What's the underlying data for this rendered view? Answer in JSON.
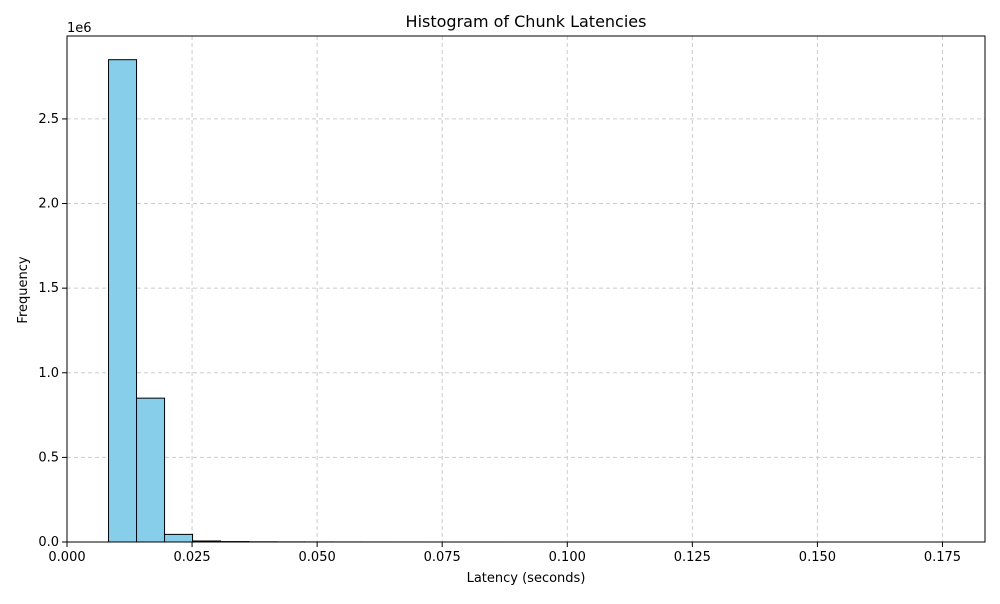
{
  "chart_data": {
    "type": "bar",
    "title": "Histogram of Chunk Latencies",
    "xlabel": "Latency (seconds)",
    "ylabel": "Frequency",
    "xlim": [
      0.0,
      0.1835
    ],
    "ylim": [
      0,
      2990000
    ],
    "y_offset_label": "1e6",
    "x_ticks": [
      0.0,
      0.025,
      0.05,
      0.075,
      0.1,
      0.125,
      0.15,
      0.175
    ],
    "x_tick_labels": [
      "0.000",
      "0.025",
      "0.050",
      "0.075",
      "0.100",
      "0.125",
      "0.150",
      "0.175"
    ],
    "y_ticks": [
      0,
      500000,
      1000000,
      1500000,
      2000000,
      2500000
    ],
    "y_tick_labels": [
      "0.0",
      "0.5",
      "1.0",
      "1.5",
      "2.0",
      "2.5"
    ],
    "grid": true,
    "bar_color": "#87ceeb",
    "edge_color": "#000000",
    "bins": [
      {
        "x0": 0.0083,
        "x1": 0.0139,
        "value": 2850000
      },
      {
        "x0": 0.0139,
        "x1": 0.0195,
        "value": 850000
      },
      {
        "x0": 0.0195,
        "x1": 0.0251,
        "value": 45000
      },
      {
        "x0": 0.0251,
        "x1": 0.0307,
        "value": 6000
      },
      {
        "x0": 0.0307,
        "x1": 0.0363,
        "value": 2500
      },
      {
        "x0": 0.0363,
        "x1": 0.0419,
        "value": 1200
      },
      {
        "x0": 0.0419,
        "x1": 0.0475,
        "value": 700
      },
      {
        "x0": 0.0475,
        "x1": 0.0531,
        "value": 450
      },
      {
        "x0": 0.0531,
        "x1": 0.0587,
        "value": 300
      },
      {
        "x0": 0.0587,
        "x1": 0.0643,
        "value": 200
      },
      {
        "x0": 0.0643,
        "x1": 0.0699,
        "value": 150
      },
      {
        "x0": 0.0699,
        "x1": 0.0755,
        "value": 100
      },
      {
        "x0": 0.0755,
        "x1": 0.0811,
        "value": 80
      },
      {
        "x0": 0.0811,
        "x1": 0.0867,
        "value": 60
      },
      {
        "x0": 0.0867,
        "x1": 0.0923,
        "value": 50
      },
      {
        "x0": 0.0923,
        "x1": 0.0979,
        "value": 40
      },
      {
        "x0": 0.0979,
        "x1": 0.1035,
        "value": 30
      },
      {
        "x0": 0.1035,
        "x1": 0.1091,
        "value": 25
      },
      {
        "x0": 0.1091,
        "x1": 0.1147,
        "value": 20
      },
      {
        "x0": 0.1147,
        "x1": 0.1203,
        "value": 15
      },
      {
        "x0": 0.1203,
        "x1": 0.1259,
        "value": 12
      },
      {
        "x0": 0.1259,
        "x1": 0.1315,
        "value": 10
      },
      {
        "x0": 0.1315,
        "x1": 0.1371,
        "value": 8
      },
      {
        "x0": 0.1371,
        "x1": 0.1427,
        "value": 6
      },
      {
        "x0": 0.1427,
        "x1": 0.1483,
        "value": 5
      },
      {
        "x0": 0.1483,
        "x1": 0.1539,
        "value": 4
      },
      {
        "x0": 0.1539,
        "x1": 0.1595,
        "value": 3
      },
      {
        "x0": 0.1595,
        "x1": 0.1651,
        "value": 2
      },
      {
        "x0": 0.1651,
        "x1": 0.1707,
        "value": 2
      },
      {
        "x0": 0.1707,
        "x1": 0.1763,
        "value": 1
      }
    ]
  }
}
